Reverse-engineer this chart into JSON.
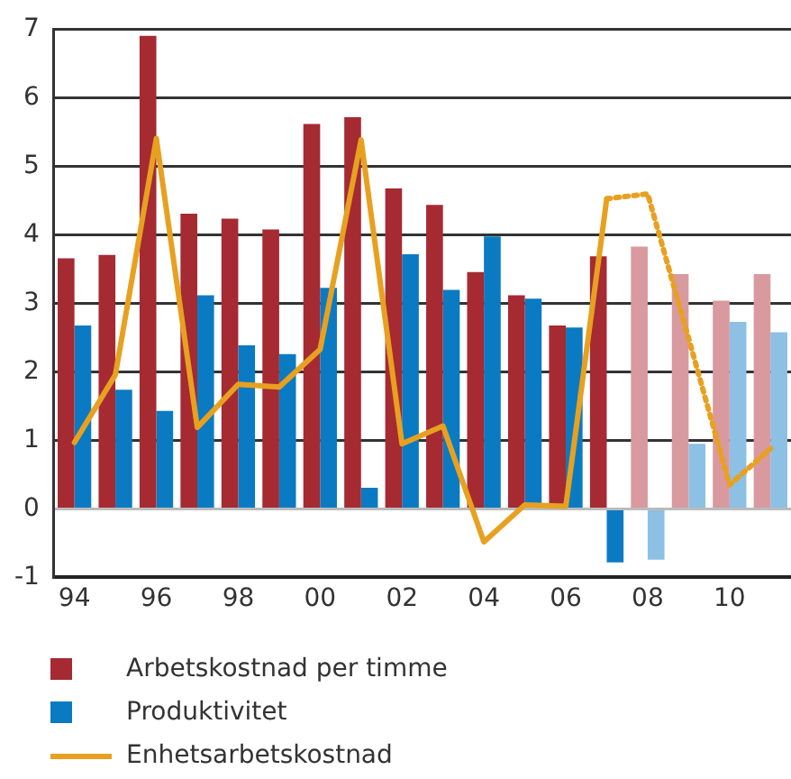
{
  "chart_data": {
    "type": "bar",
    "categories": [
      "94",
      null,
      "96",
      null,
      "98",
      null,
      "00",
      null,
      "02",
      null,
      "04",
      null,
      "06",
      null,
      "08",
      null,
      "10",
      null
    ],
    "series": [
      {
        "name": "Arbetskostnad per timme",
        "color": "#a52a32",
        "colors": [
          "#a52a32",
          "#a52a32",
          "#a52a32",
          "#a52a32",
          "#a52a32",
          "#a52a32",
          "#a52a32",
          "#a52a32",
          "#a52a32",
          "#a52a32",
          "#a52a32",
          "#a52a32",
          "#a52a32",
          "#a52a32",
          "#d89a9e",
          "#d89a9e",
          "#d89a9e",
          "#d89a9e"
        ],
        "values": [
          3.66,
          3.71,
          6.91,
          4.31,
          4.24,
          4.08,
          5.62,
          5.72,
          4.68,
          4.44,
          3.46,
          3.12,
          2.68,
          3.69,
          3.83,
          3.43,
          3.04,
          3.43
        ]
      },
      {
        "name": "Produktivitet",
        "color": "#0a7bc2",
        "colors": [
          "#0a7bc2",
          "#0a7bc2",
          "#0a7bc2",
          "#0a7bc2",
          "#0a7bc2",
          "#0a7bc2",
          "#0a7bc2",
          "#0a7bc2",
          "#0a7bc2",
          "#0a7bc2",
          "#0a7bc2",
          "#0a7bc2",
          "#0a7bc2",
          "#0a7bc2",
          "#8cc0e4",
          "#8cc0e4",
          "#8cc0e4",
          "#8cc0e4"
        ],
        "values": [
          2.68,
          1.74,
          1.43,
          3.12,
          2.39,
          2.26,
          3.23,
          0.31,
          3.72,
          3.2,
          3.98,
          3.07,
          2.65,
          -0.78,
          -0.74,
          0.95,
          2.73,
          2.58
        ]
      },
      {
        "name": "Enhetsarbetskostnad",
        "type": "line",
        "color": "#e8a020",
        "line_style": "solid",
        "values": [
          0.97,
          1.96,
          5.41,
          1.19,
          1.82,
          1.78,
          2.33,
          5.39,
          0.95,
          1.21,
          -0.48,
          0.06,
          0.04,
          4.53,
          null,
          null,
          null,
          null
        ]
      },
      {
        "type": "line",
        "color": "#e8a020",
        "line_style": "dotted",
        "values": [
          null,
          null,
          null,
          null,
          null,
          null,
          null,
          null,
          null,
          null,
          null,
          null,
          null,
          4.53,
          4.6,
          2.49,
          0.35,
          0.88
        ]
      }
    ],
    "ylim": [
      -1,
      7
    ],
    "yticks": [
      -1,
      0,
      1,
      2,
      3,
      4,
      5,
      6,
      7
    ],
    "grid": "y",
    "legend": "bottom",
    "marker": "none"
  }
}
